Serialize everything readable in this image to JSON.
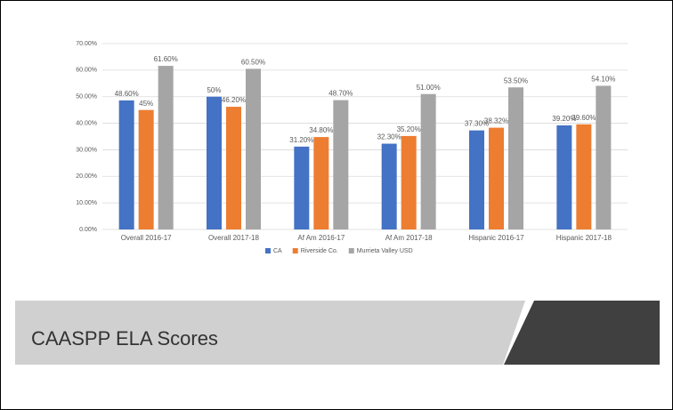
{
  "chart_data": {
    "type": "bar",
    "title": "CAASPP ELA Scores",
    "categories": [
      "Overall 2016-17",
      "Overall 2017-18",
      "Af Am 2016-17",
      "Af Am 2017-18",
      "Hispanic 2016-17",
      "Hispanic 2017-18"
    ],
    "series": [
      {
        "name": "CA",
        "color": "#4472c4",
        "values": [
          48.6,
          50,
          31.2,
          32.3,
          37.3,
          39.2
        ],
        "value_labels": [
          "48.60%",
          "50%",
          "31.20%",
          "32.30%",
          "37.30%",
          "39.20%"
        ]
      },
      {
        "name": "Riverside Co.",
        "color": "#ed7d31",
        "values": [
          45,
          46.2,
          34.8,
          35.2,
          38.32,
          39.6
        ],
        "value_labels": [
          "45%",
          "46.20%",
          "34.80%",
          "35.20%",
          "38.32%",
          "39.60%"
        ]
      },
      {
        "name": "Murrieta Valley USD",
        "color": "#a5a5a5",
        "values": [
          61.6,
          60.5,
          48.7,
          51.0,
          53.5,
          54.1
        ],
        "value_labels": [
          "61.60%",
          "60.50%",
          "48.70%",
          "51.00%",
          "53.50%",
          "54.10%"
        ]
      }
    ],
    "ylim": [
      0,
      70
    ],
    "yticks": [
      {
        "value": 0,
        "label": "0.00%"
      },
      {
        "value": 10,
        "label": "10.00%"
      },
      {
        "value": 20,
        "label": "20.00%"
      },
      {
        "value": 30,
        "label": "30.00%"
      },
      {
        "value": 40,
        "label": "40.00%"
      },
      {
        "value": 50,
        "label": "50.00%"
      },
      {
        "value": 60,
        "label": "60.00%"
      },
      {
        "value": 70,
        "label": "70.00%"
      }
    ],
    "grid": true,
    "legend": "bottom"
  }
}
